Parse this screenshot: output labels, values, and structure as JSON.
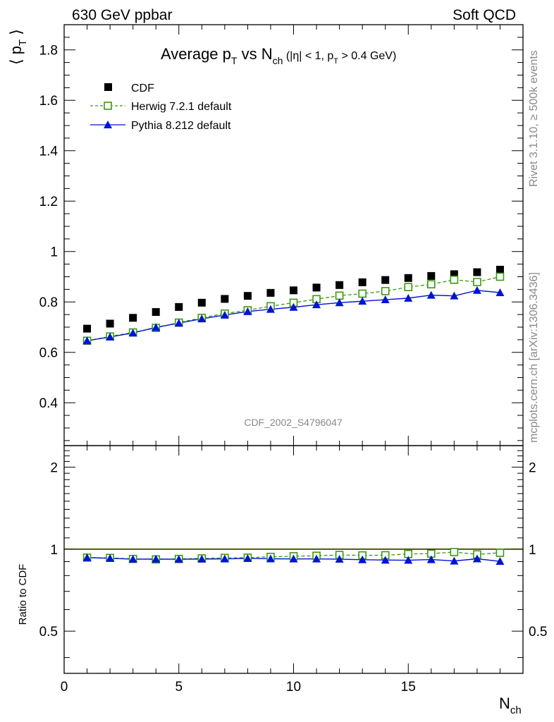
{
  "header": {
    "left": "630 GeV ppbar",
    "right": "Soft QCD"
  },
  "side": {
    "rivet": "Rivet 3.1.10, ≥ 500k events",
    "mcplots": "mcplots.cern.ch [arXiv:1306.3436]"
  },
  "colors": {
    "data": "#000000",
    "herwig": "#3a9a12",
    "pythia": "#0014d4",
    "band": "#e2ef3a"
  },
  "chart_data": {
    "type": "scatter",
    "title": "Average p_T vs N_ch (|η| < 1, p_T > 0.4 GeV)",
    "title_parts": {
      "main": "Average p",
      "sub1": "T",
      "vs": " vs N",
      "sub2": "ch",
      "cut_open": " (|η| < 1, p",
      "sub3": "T",
      "cut_close": " > 0.4 GeV)"
    },
    "analysis": "CDF_2002_S4796047",
    "ylabel": "⟨ p_T ⟩",
    "ylabel_parts": {
      "open": "⟨ p",
      "sub": "T",
      "close": " ⟩"
    },
    "xlabel": "N_ch",
    "xlabel_parts": {
      "main": "N",
      "sub": "ch"
    },
    "ratio_label": "Ratio to CDF",
    "xlim": [
      0,
      20
    ],
    "ylim": [
      0.23,
      1.9
    ],
    "ratio_ylim": [
      0.35,
      2.4
    ],
    "x_ticks": [
      0,
      5,
      10,
      15
    ],
    "x_tick_labels": [
      "0",
      "5",
      "10",
      "15"
    ],
    "y_ticks": [
      0.4,
      0.6,
      0.8,
      1.0,
      1.2,
      1.4,
      1.6,
      1.8
    ],
    "y_tick_labels": [
      "0.4",
      "0.6",
      "0.8",
      "1",
      "1.2",
      "1.4",
      "1.6",
      "1.8"
    ],
    "ratio_ticks": [
      0.5,
      1,
      2
    ],
    "ratio_tick_labels": [
      "0.5",
      "1",
      "2"
    ],
    "x": [
      1,
      2,
      3,
      4,
      5,
      6,
      7,
      8,
      9,
      10,
      11,
      12,
      13,
      14,
      15,
      16,
      17,
      18,
      19
    ],
    "series": [
      {
        "name": "CDF",
        "marker": "square-filled",
        "values": [
          0.694,
          0.714,
          0.737,
          0.76,
          0.78,
          0.797,
          0.812,
          0.824,
          0.836,
          0.846,
          0.857,
          0.867,
          0.878,
          0.887,
          0.895,
          0.903,
          0.91,
          0.918,
          0.928
        ]
      },
      {
        "name": "Herwig 7.2.1 default",
        "marker": "square-open",
        "line": "dashed",
        "values": [
          0.646,
          0.663,
          0.679,
          0.697,
          0.718,
          0.737,
          0.754,
          0.767,
          0.783,
          0.797,
          0.811,
          0.825,
          0.833,
          0.843,
          0.859,
          0.87,
          0.888,
          0.879,
          0.9
        ],
        "ratio": [
          0.931,
          0.929,
          0.921,
          0.917,
          0.921,
          0.925,
          0.929,
          0.931,
          0.937,
          0.942,
          0.946,
          0.952,
          0.949,
          0.95,
          0.96,
          0.963,
          0.976,
          0.957,
          0.97
        ]
      },
      {
        "name": "Pythia 8.212 default",
        "marker": "triangle-filled",
        "line": "solid",
        "values": [
          0.646,
          0.661,
          0.677,
          0.699,
          0.716,
          0.733,
          0.748,
          0.762,
          0.771,
          0.779,
          0.789,
          0.797,
          0.803,
          0.809,
          0.815,
          0.827,
          0.824,
          0.846,
          0.837
        ],
        "ratio": [
          0.931,
          0.926,
          0.919,
          0.92,
          0.918,
          0.92,
          0.921,
          0.925,
          0.922,
          0.921,
          0.921,
          0.919,
          0.915,
          0.912,
          0.911,
          0.916,
          0.905,
          0.922,
          0.902
        ]
      }
    ]
  }
}
